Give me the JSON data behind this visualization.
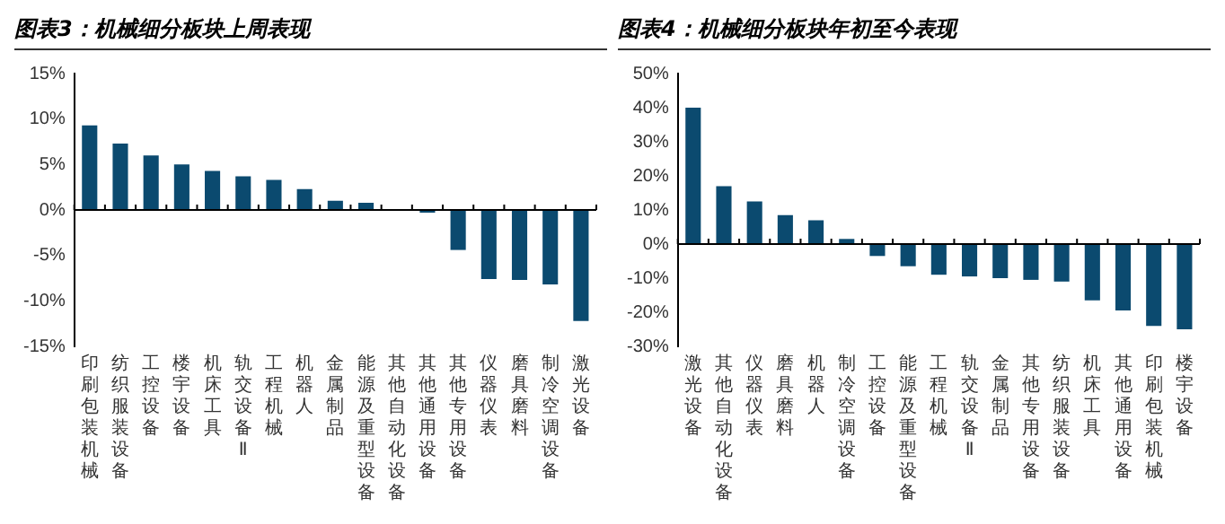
{
  "chart_data": [
    {
      "type": "bar",
      "title": "图表3：机械细分板块上周表现",
      "categories": [
        "印刷包装机械",
        "纺织服装设备",
        "工控设备",
        "楼宇设备",
        "机床工具",
        "轨交设备Ⅱ",
        "工程机械",
        "机器人",
        "金属制品",
        "能源及重型设备",
        "其他自动化设备",
        "其他通用设备",
        "其他专用设备",
        "仪器仪表",
        "磨具磨料",
        "制冷空调设备",
        "激光设备"
      ],
      "values": [
        9.3,
        7.3,
        6.0,
        5.0,
        4.3,
        3.7,
        3.3,
        2.3,
        1.0,
        0.8,
        0.1,
        -0.3,
        -4.4,
        -7.6,
        -7.7,
        -8.2,
        -12.2
      ],
      "color": "#0b4a6f",
      "ylim": [
        -15,
        15
      ],
      "yticks": [
        {
          "value": -15,
          "label": "-15%"
        },
        {
          "value": -10,
          "label": "-10%"
        },
        {
          "value": -5,
          "label": "-5%"
        },
        {
          "value": 0,
          "label": "0%"
        },
        {
          "value": 5,
          "label": "5%"
        },
        {
          "value": 10,
          "label": "10%"
        },
        {
          "value": 15,
          "label": "15%"
        }
      ],
      "legend": false
    },
    {
      "type": "bar",
      "title": "图表4：机械细分板块年初至今表现",
      "categories": [
        "激光设备",
        "其他自动化设备",
        "仪器仪表",
        "磨具磨料",
        "机器人",
        "制冷空调设备",
        "工控设备",
        "能源及重型设备",
        "工程机械",
        "轨交设备Ⅱ",
        "金属制品",
        "其他专用设备",
        "纺织服装设备",
        "机床工具",
        "其他通用设备",
        "印刷包装机械",
        "楼宇设备"
      ],
      "values": [
        40,
        17,
        12.5,
        8.5,
        7,
        1.5,
        -3.5,
        -6.5,
        -9,
        -9.5,
        -10,
        -10.5,
        -11,
        -16.5,
        -19.5,
        -24,
        -25
      ],
      "color": "#0b4a6f",
      "ylim": [
        -30,
        50
      ],
      "yticks": [
        {
          "value": -30,
          "label": "-30%"
        },
        {
          "value": -20,
          "label": "-20%"
        },
        {
          "value": -10,
          "label": "-10%"
        },
        {
          "value": 0,
          "label": "0%"
        },
        {
          "value": 10,
          "label": "10%"
        },
        {
          "value": 20,
          "label": "20%"
        },
        {
          "value": 30,
          "label": "30%"
        },
        {
          "value": 40,
          "label": "40%"
        },
        {
          "value": 50,
          "label": "50%"
        }
      ],
      "legend": false
    }
  ]
}
